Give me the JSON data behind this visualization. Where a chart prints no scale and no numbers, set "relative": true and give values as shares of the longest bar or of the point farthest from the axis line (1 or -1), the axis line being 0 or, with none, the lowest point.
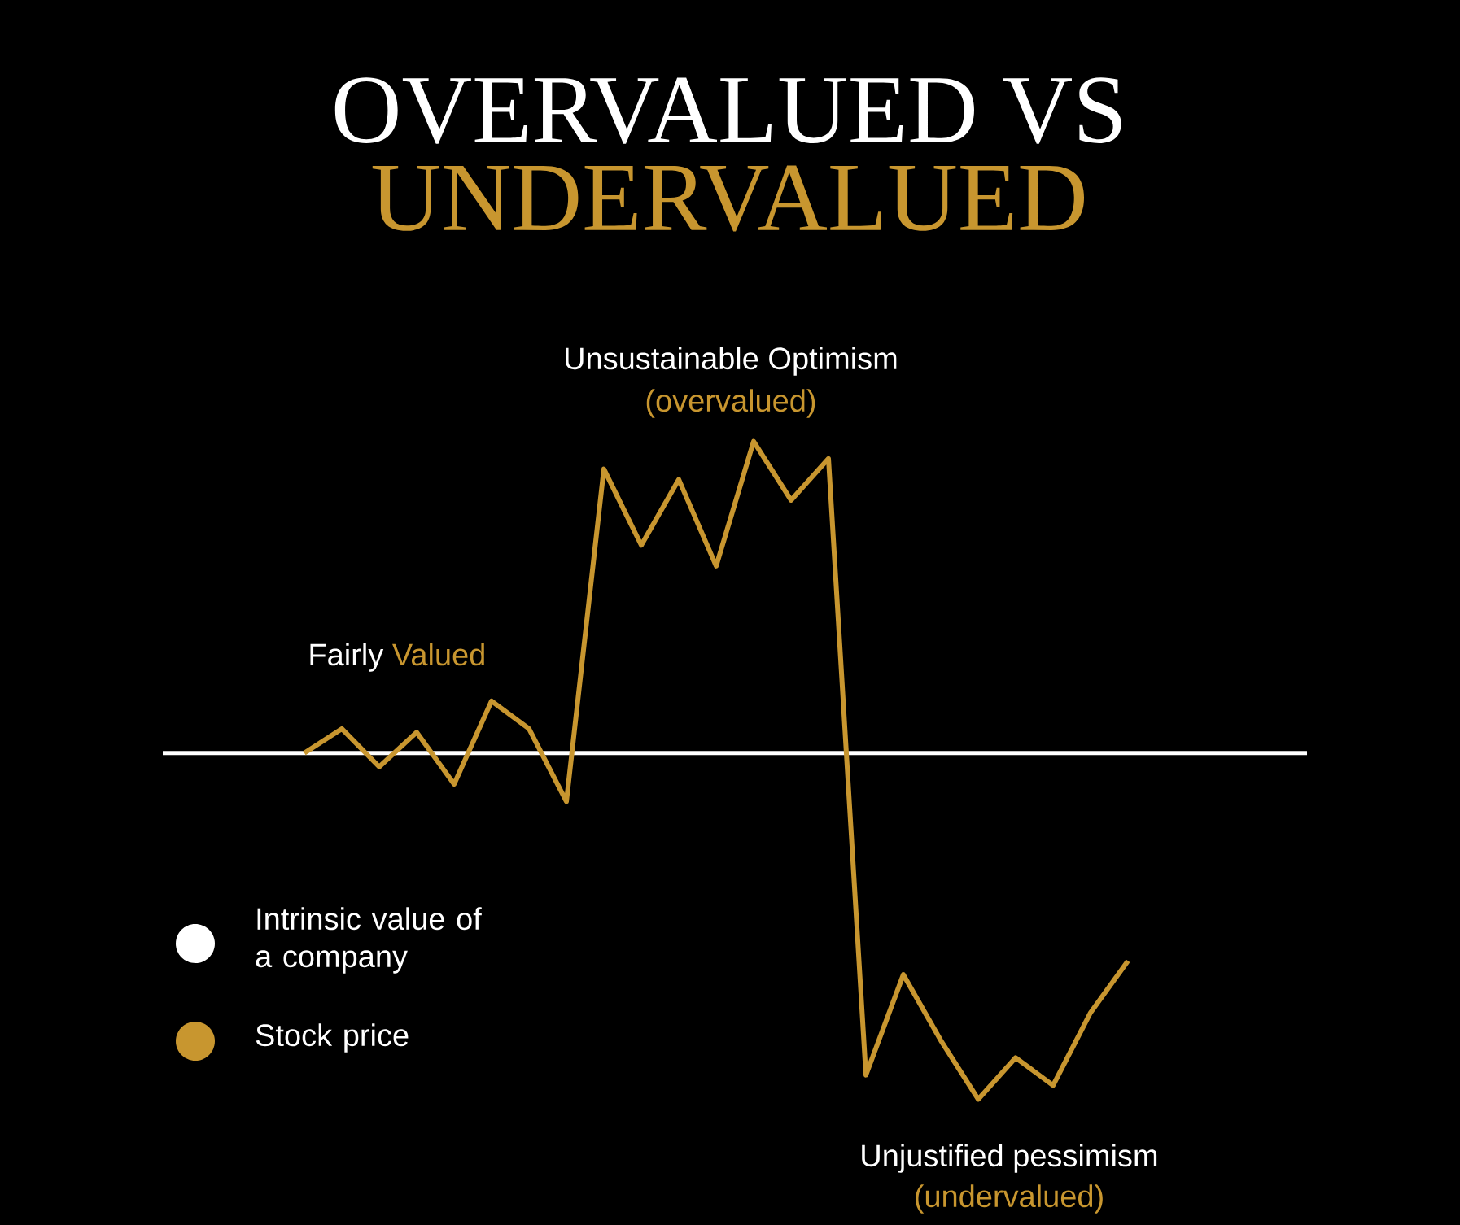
{
  "chart_data": {
    "type": "line",
    "title": "OVERVALUED VS",
    "subtitle": "UNDERVALUED",
    "relative": true,
    "categories": [
      null,
      null,
      null,
      null,
      null,
      null,
      null,
      null,
      null,
      null,
      null,
      null,
      null,
      null,
      null,
      null,
      null,
      null,
      null,
      null,
      null,
      null,
      null
    ],
    "series": [
      {
        "name": "Stock price",
        "color": "#c8962f",
        "values": [
          0,
          0.07,
          -0.04,
          0.06,
          -0.09,
          0.15,
          0.07,
          -0.14,
          0.82,
          0.6,
          0.79,
          0.54,
          0.9,
          0.73,
          0.85,
          -0.93,
          -0.64,
          -0.83,
          -1,
          -0.88,
          -0.96,
          -0.75,
          -0.6
        ]
      }
    ],
    "ref_lines": [
      {
        "axis": "y",
        "value": 0,
        "label": "Intrinsic value of a company",
        "color": "#ffffff"
      }
    ],
    "annotations": [
      "Unsustainable Optimism",
      "(overvalued)",
      "Fairly",
      "Valued",
      "Unjustified pessimism",
      "(undervalued)"
    ],
    "legend": "bottom left",
    "marker": "none",
    "line_style": "solid"
  }
}
